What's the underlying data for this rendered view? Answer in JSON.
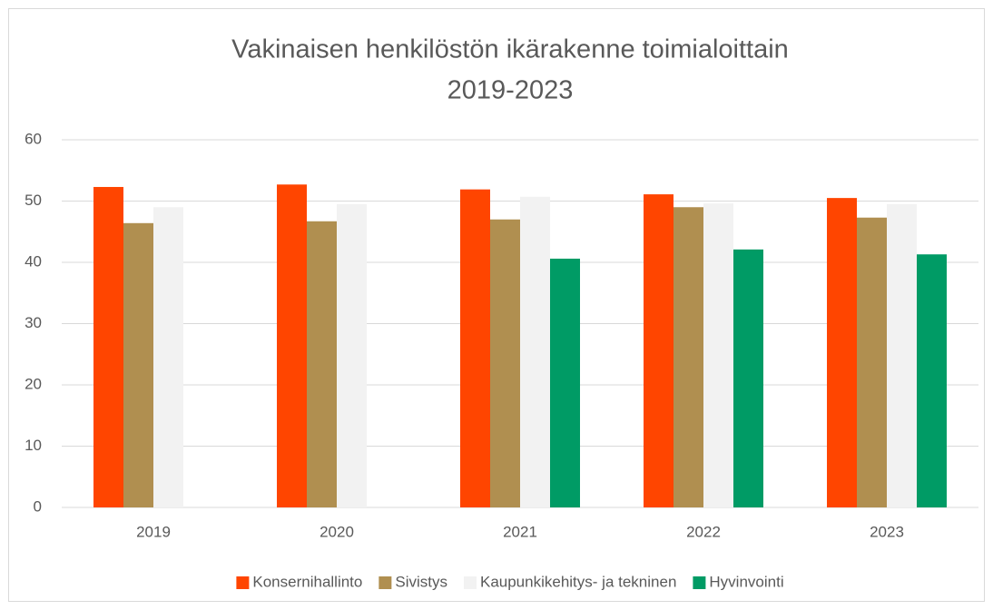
{
  "chart_data": {
    "type": "bar",
    "title": "Vakinaisen henkilöstön ikärakenne toimialoittain",
    "subtitle": "2019-2023",
    "categories": [
      "2019",
      "2020",
      "2021",
      "2022",
      "2023"
    ],
    "series": [
      {
        "name": "Konsernihallinto",
        "color": "#ff4500",
        "values": [
          52.3,
          52.7,
          51.9,
          51.1,
          50.5
        ]
      },
      {
        "name": "Sivistys",
        "color": "#b08f50",
        "values": [
          46.4,
          46.7,
          47.0,
          49.0,
          47.3
        ]
      },
      {
        "name": "Kaupunkikehitys- ja tekninen",
        "color": "#f2f2f2",
        "values": [
          49.0,
          49.5,
          50.7,
          49.6,
          49.5
        ]
      },
      {
        "name": "Hyvinvointi",
        "color": "#009b65",
        "values": [
          null,
          null,
          40.6,
          42.1,
          41.3
        ]
      }
    ],
    "ylim": [
      0,
      60
    ],
    "yticks": [
      0,
      10,
      20,
      30,
      40,
      50,
      60
    ],
    "grid": true,
    "legend": "bottom"
  }
}
